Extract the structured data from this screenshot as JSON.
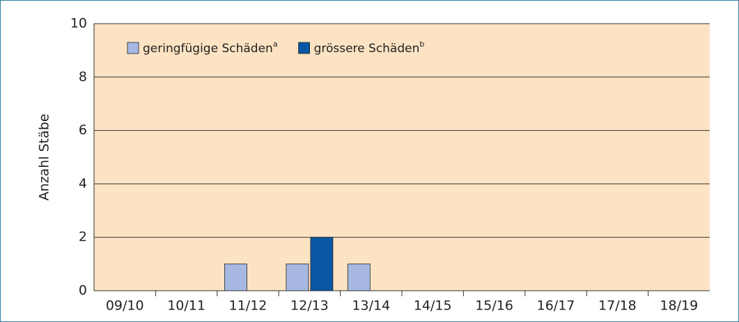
{
  "chart_data": {
    "type": "bar",
    "y_label": "Anzahl Stäbe",
    "categories": [
      "09/10",
      "10/11",
      "11/12",
      "12/13",
      "13/14",
      "14/15",
      "15/16",
      "16/17",
      "17/18",
      "18/19"
    ],
    "series": [
      {
        "name": "geringfügige Schäden",
        "footnote_marker": "a",
        "color": "#a7b9e2",
        "values": [
          0,
          0,
          1,
          1,
          1,
          0,
          0,
          0,
          0,
          0
        ]
      },
      {
        "name": "grössere Schäden",
        "footnote_marker": "b",
        "color": "#0a57a4",
        "values": [
          0,
          0,
          0,
          2,
          0,
          0,
          0,
          0,
          0,
          0
        ]
      }
    ],
    "ylim": [
      0,
      10
    ],
    "yticks": [
      0,
      2,
      4,
      6,
      8,
      10
    ],
    "grid": true,
    "legend": "top-left"
  }
}
